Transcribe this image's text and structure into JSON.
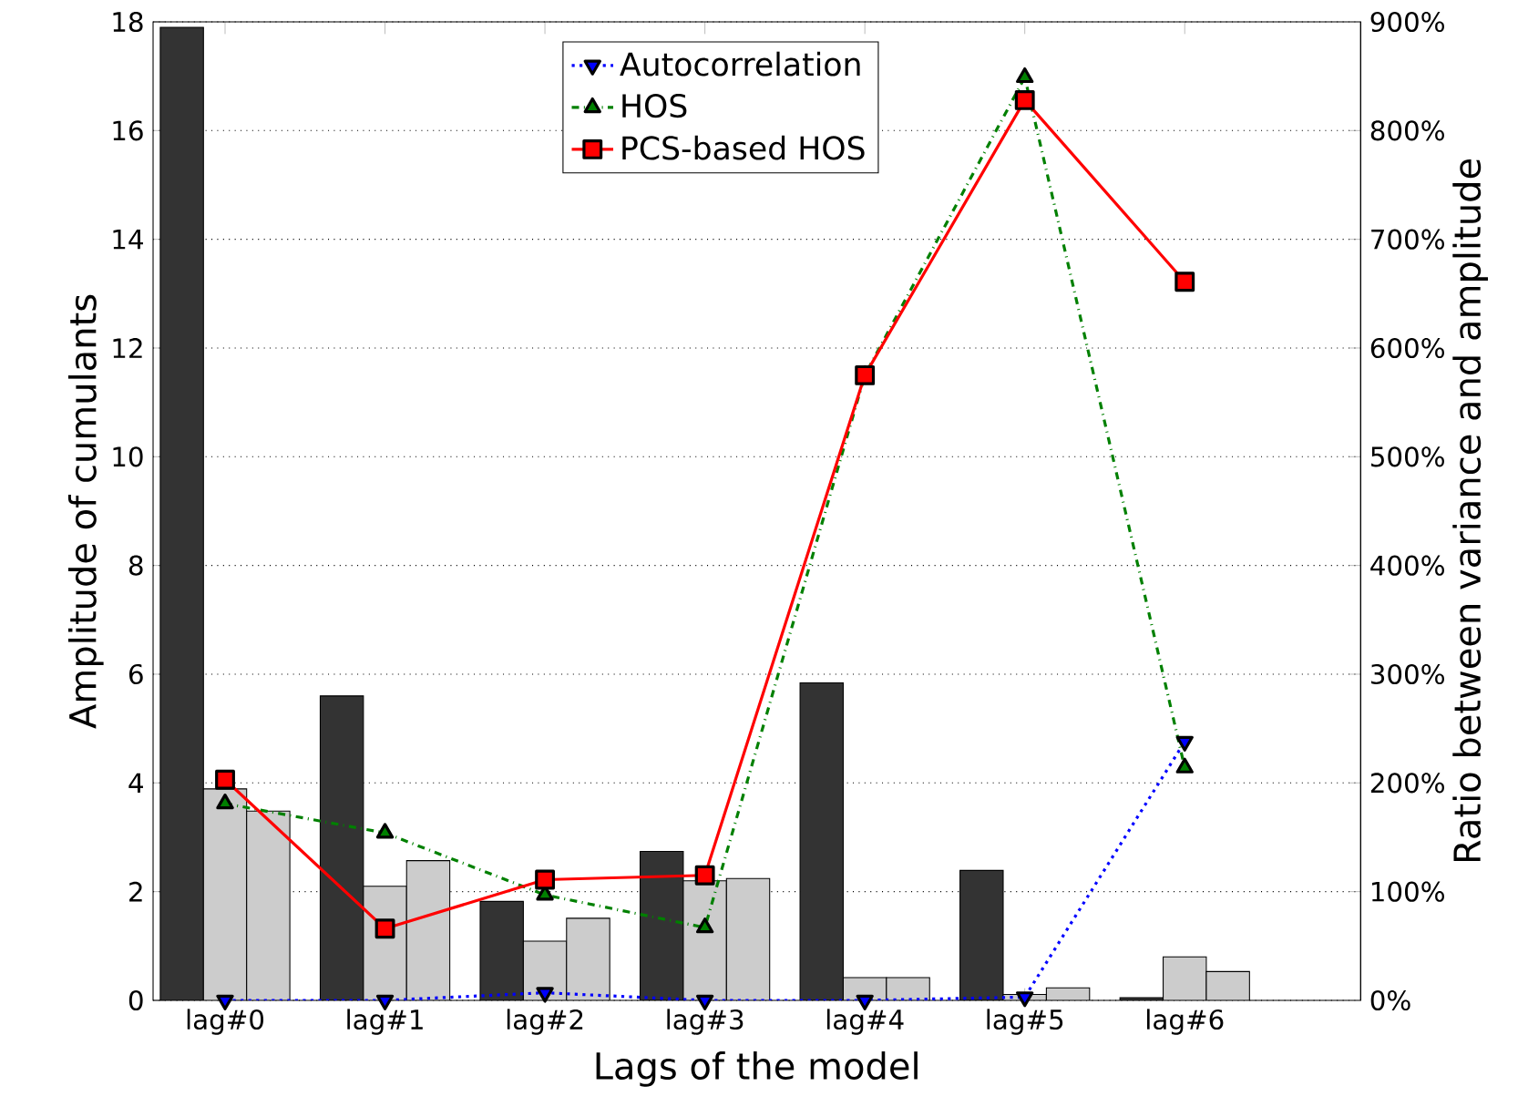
{
  "chart_data": {
    "type": "bar",
    "xlabel": "Lags of the model",
    "ylabel": "Amplitude of cumulants",
    "y2label": "Ratio between variance and amplitude",
    "categories": [
      "lag#0",
      "lag#1",
      "lag#2",
      "lag#3",
      "lag#4",
      "lag#5",
      "lag#6"
    ],
    "series": [
      {
        "color": "#333333",
        "values": [
          17.9,
          5.6,
          1.82,
          2.74,
          5.84,
          2.39,
          0.05
        ]
      },
      {
        "color": "#cccccc",
        "values": [
          3.89,
          2.1,
          1.09,
          2.2,
          0.42,
          0.11,
          0.8
        ]
      },
      {
        "color": "#cccccc",
        "values": [
          3.48,
          2.57,
          1.51,
          2.24,
          0.42,
          0.23,
          0.53
        ]
      },
      {
        "name": "Autocorrelation",
        "type": "line",
        "axis": "y2",
        "color": "#0000ff",
        "marker": "triangle-down",
        "line_style": "dotted",
        "values": [
          0,
          0,
          7,
          0,
          0,
          3,
          238
        ]
      },
      {
        "name": "HOS",
        "type": "line",
        "axis": "y2",
        "color": "#008000",
        "marker": "triangle",
        "line_style": "dashdot",
        "values": [
          181,
          154,
          97,
          67,
          575,
          849,
          214
        ]
      },
      {
        "name": "PCS-based HOS",
        "type": "line",
        "axis": "y2",
        "color": "#ff0000",
        "marker": "square",
        "line_style": "solid",
        "values": [
          203,
          66,
          111,
          115,
          575,
          828,
          661
        ]
      }
    ],
    "ylim": [
      0,
      18
    ],
    "yticks": [
      0,
      2,
      4,
      6,
      8,
      10,
      12,
      14,
      16,
      18
    ],
    "y2lim": [
      0,
      900
    ],
    "y2ticks": [
      {
        "value": 0,
        "label": "0%"
      },
      {
        "value": 100,
        "label": "100%"
      },
      {
        "value": 200,
        "label": "200%"
      },
      {
        "value": 300,
        "label": "300%"
      },
      {
        "value": 400,
        "label": "400%"
      },
      {
        "value": 500,
        "label": "500%"
      },
      {
        "value": 600,
        "label": "600%"
      },
      {
        "value": 700,
        "label": "700%"
      },
      {
        "value": 800,
        "label": "800%"
      },
      {
        "value": 900,
        "label": "900%"
      }
    ],
    "grid": "y",
    "legend": "top"
  }
}
